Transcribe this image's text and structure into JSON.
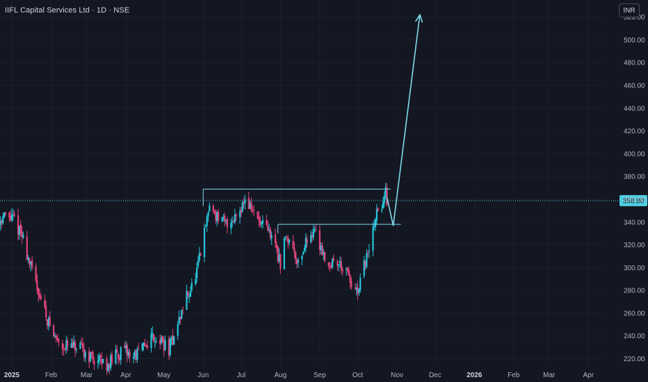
{
  "header": {
    "title": "IIFL Capital Services Ltd · 1D · NSE",
    "currency": "INR"
  },
  "colors": {
    "background": "#131722",
    "up": "#26c6da",
    "down": "#e0457b",
    "drawing": "#80deea",
    "price_line": "#4dd0e1",
    "grid": "#1c2030"
  },
  "chart_data": {
    "type": "candlestick",
    "title": "IIFL Capital Services Ltd · 1D · NSE",
    "ylabel": "",
    "y_ticks": [
      220,
      240,
      260,
      280,
      300,
      320,
      340,
      360,
      380,
      400,
      420,
      440,
      460,
      480,
      500,
      520
    ],
    "ylim": [
      213,
      535
    ],
    "x_ticks": [
      "2025",
      "Feb",
      "Mar",
      "Apr",
      "May",
      "Jun",
      "Jul",
      "Aug",
      "Sep",
      "Oct",
      "Nov",
      "Dec",
      "2026",
      "Feb",
      "Mar",
      "Apr"
    ],
    "x_tick_dates": [
      "2025-01-01",
      "2025-02-01",
      "2025-03-01",
      "2025-04-01",
      "2025-05-01",
      "2025-06-01",
      "2025-07-01",
      "2025-08-01",
      "2025-09-01",
      "2025-10-01",
      "2025-11-01",
      "2025-12-01",
      "2026-01-01",
      "2026-02-01",
      "2026-03-01",
      "2026-04-01"
    ],
    "current_price": 358.8,
    "current_price_label": "358.80",
    "price_path": [
      [
        "2024-12-18",
        340
      ],
      [
        "2024-12-26",
        345
      ],
      [
        "2025-01-03",
        342
      ],
      [
        "2025-01-10",
        325
      ],
      [
        "2025-01-16",
        300
      ],
      [
        "2025-01-22",
        280
      ],
      [
        "2025-01-28",
        258
      ],
      [
        "2025-02-03",
        240
      ],
      [
        "2025-02-10",
        232
      ],
      [
        "2025-02-17",
        230
      ],
      [
        "2025-02-24",
        228
      ],
      [
        "2025-03-04",
        222
      ],
      [
        "2025-03-10",
        218
      ],
      [
        "2025-03-18",
        215
      ],
      [
        "2025-03-25",
        224
      ],
      [
        "2025-04-01",
        226
      ],
      [
        "2025-04-07",
        222
      ],
      [
        "2025-04-14",
        228
      ],
      [
        "2025-04-21",
        240
      ],
      [
        "2025-04-28",
        236
      ],
      [
        "2025-05-05",
        228
      ],
      [
        "2025-05-12",
        250
      ],
      [
        "2025-05-19",
        275
      ],
      [
        "2025-05-26",
        290
      ],
      [
        "2025-06-02",
        330
      ],
      [
        "2025-06-06",
        355
      ],
      [
        "2025-06-12",
        345
      ],
      [
        "2025-06-18",
        338
      ],
      [
        "2025-06-24",
        342
      ],
      [
        "2025-06-30",
        352
      ],
      [
        "2025-07-04",
        360
      ],
      [
        "2025-07-10",
        350
      ],
      [
        "2025-07-16",
        338
      ],
      [
        "2025-07-22",
        332
      ],
      [
        "2025-07-28",
        322
      ],
      [
        "2025-08-01",
        300
      ],
      [
        "2025-08-05",
        330
      ],
      [
        "2025-08-11",
        318
      ],
      [
        "2025-08-15",
        304
      ],
      [
        "2025-08-21",
        322
      ],
      [
        "2025-08-27",
        334
      ],
      [
        "2025-09-02",
        318
      ],
      [
        "2025-09-08",
        302
      ],
      [
        "2025-09-14",
        306
      ],
      [
        "2025-09-20",
        300
      ],
      [
        "2025-09-26",
        285
      ],
      [
        "2025-10-01",
        275
      ],
      [
        "2025-10-06",
        302
      ],
      [
        "2025-10-10",
        315
      ],
      [
        "2025-10-15",
        345
      ],
      [
        "2025-10-20",
        355
      ],
      [
        "2025-10-23",
        365
      ],
      [
        "2025-10-26",
        352
      ]
    ],
    "drawings": {
      "rectangles": [
        {
          "start": "2025-06-01",
          "end": "2025-10-27",
          "top": 369,
          "bottom": 354
        },
        {
          "start": "2025-07-30",
          "end": "2025-11-04",
          "top": 338,
          "bottom": 330
        }
      ],
      "projection_path": [
        [
          "2025-10-24",
          362
        ],
        [
          "2025-10-29",
          337
        ],
        [
          "2025-11-19",
          522
        ]
      ]
    }
  }
}
